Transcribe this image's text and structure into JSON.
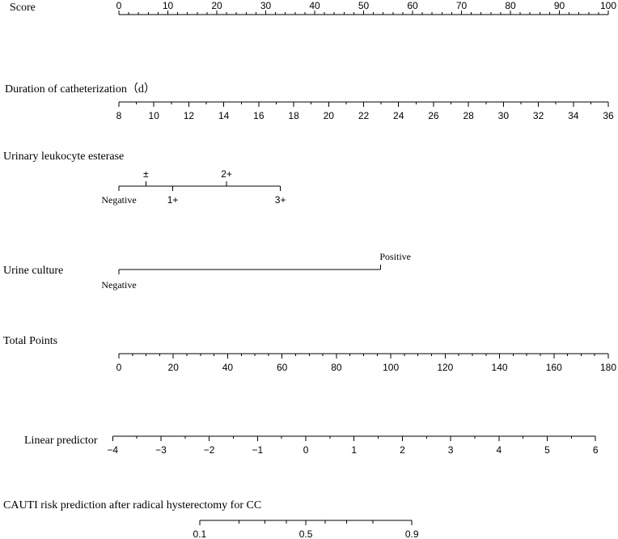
{
  "chart_data": {
    "type": "nomogram",
    "title": "",
    "score": {
      "label": "Score",
      "range": [
        0,
        100
      ],
      "tick_labels": [
        "0",
        "10",
        "20",
        "30",
        "40",
        "50",
        "60",
        "70",
        "80",
        "90",
        "100"
      ],
      "minor_step": 2
    },
    "duration": {
      "label": "Duration of catheterization（d）",
      "range": [
        8,
        36
      ],
      "tick_labels": [
        "8",
        "10",
        "12",
        "14",
        "16",
        "18",
        "20",
        "22",
        "24",
        "26",
        "28",
        "30",
        "32",
        "34",
        "36"
      ],
      "points_range": [
        0,
        100
      ]
    },
    "esterase": {
      "label": "Urinary leukocyte esterase",
      "categories": [
        {
          "name": "Negative",
          "points": 0
        },
        {
          "name": "±",
          "points": 5.5
        },
        {
          "name": "1+",
          "points": 11
        },
        {
          "name": "2+",
          "points": 22
        },
        {
          "name": "3+",
          "points": 33
        }
      ]
    },
    "culture": {
      "label": "Urine culture",
      "categories": [
        {
          "name": "Negative",
          "points": 0
        },
        {
          "name": "Positive",
          "points": 53.5
        }
      ]
    },
    "total_points": {
      "label": "Total Points",
      "range": [
        0,
        180
      ],
      "tick_labels": [
        "0",
        "20",
        "40",
        "60",
        "80",
        "100",
        "120",
        "140",
        "160",
        "180"
      ],
      "minor_step": 5
    },
    "linear_predictor": {
      "label": "Linear predictor",
      "range": [
        -4,
        6
      ],
      "tick_labels": [
        "−4",
        "−3",
        "−2",
        "−1",
        "0",
        "1",
        "2",
        "3",
        "4",
        "5",
        "6"
      ],
      "minor_step": 0.5,
      "total_points_range": [
        -2.3,
        175.3
      ]
    },
    "risk": {
      "label": "CAUTI risk prediction after radical hysterectomy for CC",
      "tick_labels": [
        "0.1",
        "0.5",
        "0.9"
      ],
      "values": [
        0.1,
        0.2,
        0.3,
        0.4,
        0.5,
        0.6,
        0.7,
        0.8,
        0.9
      ]
    }
  }
}
